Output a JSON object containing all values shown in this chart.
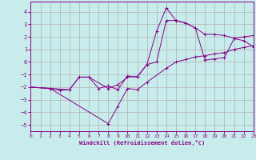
{
  "xlabel": "Windchill (Refroidissement éolien,°C)",
  "background_color": "#c8ecec",
  "grid_color": "#b0b0b0",
  "line_color": "#880088",
  "xlim": [
    0,
    23
  ],
  "ylim": [
    -5.5,
    4.8
  ],
  "xticks": [
    0,
    1,
    2,
    3,
    4,
    5,
    6,
    7,
    8,
    9,
    10,
    11,
    12,
    13,
    14,
    15,
    16,
    17,
    18,
    19,
    20,
    21,
    22,
    23
  ],
  "yticks": [
    -5,
    -4,
    -3,
    -2,
    -1,
    0,
    1,
    2,
    3,
    4
  ],
  "line1_x": [
    0,
    2,
    3,
    4,
    5,
    6,
    7,
    8,
    9,
    10,
    11,
    12,
    13,
    14,
    15,
    16,
    17,
    18,
    19,
    20,
    21,
    22,
    23
  ],
  "line1_y": [
    -2.0,
    -2.1,
    -2.25,
    -2.2,
    -1.2,
    -1.2,
    -2.1,
    -1.9,
    -2.2,
    -1.1,
    -1.2,
    -0.2,
    2.45,
    4.3,
    3.3,
    3.1,
    2.7,
    2.2,
    2.2,
    2.1,
    1.9,
    2.0,
    2.1
  ],
  "line2_x": [
    0,
    2,
    4,
    5,
    6,
    8,
    9,
    10,
    11,
    12,
    13,
    14,
    15,
    16,
    17,
    18,
    19,
    20,
    21,
    22,
    23
  ],
  "line2_y": [
    -2.0,
    -2.1,
    -2.2,
    -1.2,
    -1.2,
    -2.1,
    -1.8,
    -1.2,
    -1.15,
    -0.2,
    0.0,
    3.3,
    3.3,
    3.1,
    2.7,
    0.15,
    0.25,
    0.35,
    1.85,
    1.7,
    1.2
  ],
  "line3_x": [
    0,
    2,
    8,
    9,
    10,
    11,
    12,
    14,
    15,
    16,
    17,
    18,
    19,
    20,
    21,
    22,
    23
  ],
  "line3_y": [
    -2.0,
    -2.1,
    -4.9,
    -3.5,
    -2.1,
    -2.2,
    -1.6,
    -0.5,
    0.0,
    0.2,
    0.4,
    0.5,
    0.65,
    0.75,
    1.0,
    1.15,
    1.3
  ]
}
